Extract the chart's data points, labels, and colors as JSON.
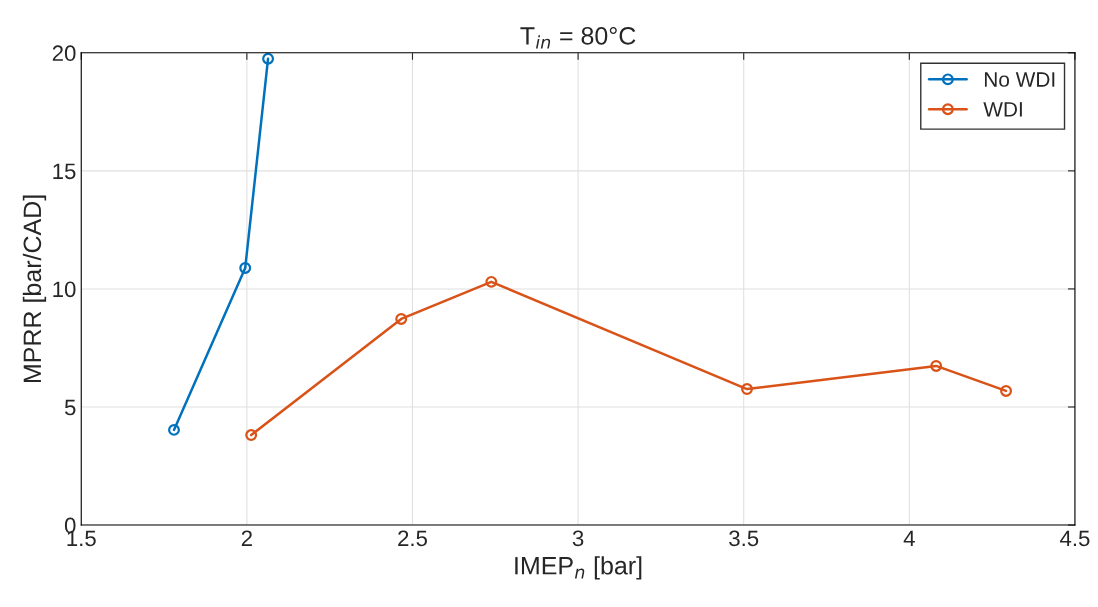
{
  "chart_data": {
    "type": "line",
    "title": "T$_{in}$ = 80°C",
    "xlabel": "IMEP$_{n}$ [bar]",
    "ylabel": "MPRR [bar/CAD]",
    "xlim": [
      1.5,
      4.5
    ],
    "xticks": [
      1.5,
      2,
      2.5,
      3,
      3.5,
      4,
      4.5
    ],
    "ylim": [
      0,
      20
    ],
    "yticks": [
      0,
      5,
      10,
      15,
      20
    ],
    "grid": true,
    "legend": "top right",
    "marker": "circle",
    "line_style": "solid",
    "series": [
      {
        "name": "No WDI",
        "color": "#0072bd",
        "x": [
          1.78,
          1.995,
          2.064
        ],
        "values": [
          4.03,
          10.89,
          19.75
        ]
      },
      {
        "name": "WDI",
        "color": "#d95319",
        "x": [
          2.013,
          2.466,
          2.738,
          3.51,
          4.081,
          4.292
        ],
        "values": [
          3.81,
          8.73,
          10.3,
          5.76,
          6.74,
          5.68
        ]
      }
    ]
  }
}
